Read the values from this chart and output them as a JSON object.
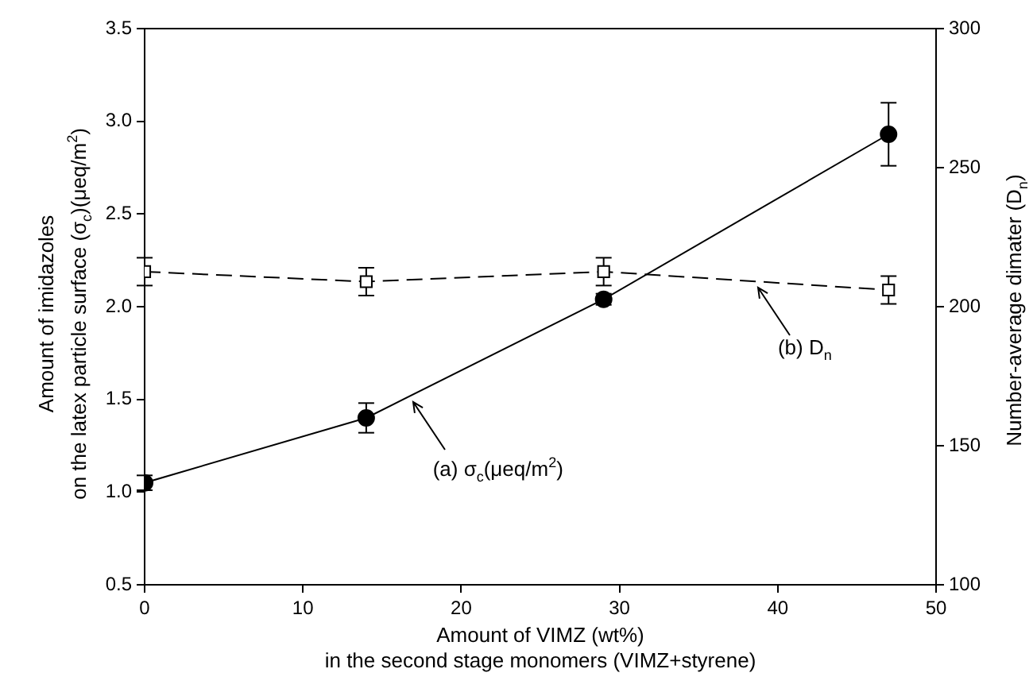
{
  "chart_data": {
    "type": "line",
    "xlabel": "Amount of VIMZ (wt%)\nin the second stage monomers (VIMZ+styrene)",
    "ylabel": "Amount of imidazoles\non the latex particle surface (σ$_{c}$)(μeq/m$^{2}$)",
    "y2label": "Number-average dimater (D$_{n}$)",
    "x": [
      0,
      14,
      29,
      47
    ],
    "series": [
      {
        "color": "#000000",
        "values": [
          1.05,
          1.4,
          2.04,
          2.93
        ],
        "errors": [
          0.04,
          0.08,
          0.03,
          0.17
        ],
        "marker": "circle",
        "line_style": "solid"
      },
      {
        "color": "#000000",
        "values": [
          212.6,
          209,
          212.6,
          206
        ],
        "errors": [
          5,
          5,
          5,
          5
        ],
        "marker": "square",
        "line_style": "dashed",
        "axis": "y2"
      }
    ],
    "xlim": [
      0,
      50
    ],
    "xticks": [
      0,
      10,
      20,
      30,
      40,
      50
    ],
    "ylim": [
      0.5,
      3.5
    ],
    "yticks": [
      {
        "value": 0.5,
        "label": "0.5"
      },
      {
        "value": 1,
        "label": "1.0"
      },
      {
        "value": 1.5,
        "label": "1.5"
      },
      {
        "value": 2,
        "label": "2.0"
      },
      {
        "value": 2.5,
        "label": "2.5"
      },
      {
        "value": 3,
        "label": "3.0"
      },
      {
        "value": 3.5,
        "label": "3.5"
      }
    ],
    "y2lim": [
      100,
      300
    ],
    "y2ticks": [
      100,
      150,
      200,
      250,
      300
    ],
    "annotations": [
      {
        "text": "(a) σ$_{c}$(μeq/m$^{2}$)",
        "x": 16.8,
        "y": 1.52
      },
      {
        "text": "(b) D$_{n}$",
        "x": 38.6,
        "y": 2.14
      }
    ],
    "grid": false,
    "legend": false
  }
}
